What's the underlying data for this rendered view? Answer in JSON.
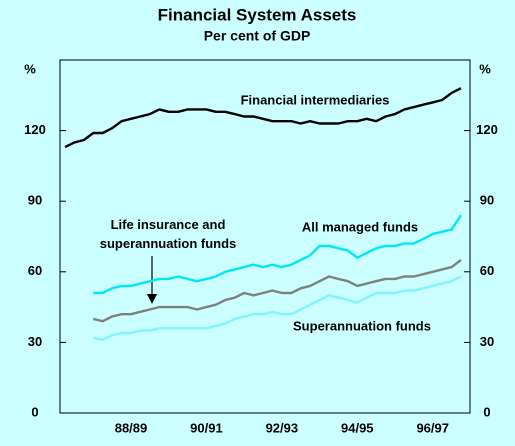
{
  "chart_data": {
    "type": "line",
    "title": "Financial System Assets",
    "subtitle": "Per cent of GDP",
    "ylabel": "%",
    "y2label": "%",
    "categories": [
      null,
      null,
      null,
      null,
      null,
      null,
      null,
      "88/89",
      null,
      null,
      null,
      null,
      null,
      null,
      null,
      "90/91",
      null,
      null,
      null,
      null,
      null,
      null,
      null,
      "92/93",
      null,
      null,
      null,
      null,
      null,
      null,
      null,
      "94/95",
      null,
      null,
      null,
      null,
      null,
      null,
      null,
      "96/97",
      null,
      null,
      null
    ],
    "ylim": [
      0,
      150
    ],
    "yticks": [
      0,
      30,
      60,
      90,
      120
    ],
    "y2lim": [
      0,
      150
    ],
    "y2ticks": [
      0,
      30,
      60,
      90,
      120
    ],
    "grid": false,
    "series": [
      {
        "name": "Financial intermediaries",
        "color": "#000000",
        "values": [
          113,
          115,
          116,
          119,
          119,
          121,
          124,
          125,
          126,
          127,
          129,
          128,
          128,
          129,
          129,
          129,
          128,
          128,
          127,
          126,
          126,
          125,
          124,
          124,
          124,
          123,
          124,
          123,
          123,
          123,
          124,
          124,
          125,
          124,
          126,
          127,
          129,
          130,
          131,
          132,
          133,
          136,
          138
        ]
      },
      {
        "name": "All managed funds",
        "color": "#00e8f8",
        "values": [
          null,
          null,
          null,
          51,
          51,
          53,
          54,
          54,
          55,
          56,
          57,
          57,
          58,
          57,
          56,
          57,
          58,
          60,
          61,
          62,
          63,
          62,
          63,
          62,
          63,
          65,
          67,
          71,
          71,
          70,
          69,
          66,
          68,
          70,
          71,
          71,
          72,
          72,
          74,
          76,
          77,
          78,
          84
        ]
      },
      {
        "name": "Life insurance and superannuation funds",
        "color": "#808080",
        "values": [
          null,
          null,
          null,
          40,
          39,
          41,
          42,
          42,
          43,
          44,
          45,
          45,
          45,
          45,
          44,
          45,
          46,
          48,
          49,
          51,
          50,
          51,
          52,
          51,
          51,
          53,
          54,
          56,
          58,
          57,
          56,
          54,
          55,
          56,
          57,
          57,
          58,
          58,
          59,
          60,
          61,
          62,
          65
        ]
      },
      {
        "name": "Superannuation funds",
        "color": "#80f4ff",
        "values": [
          null,
          null,
          null,
          32,
          31,
          33,
          34,
          34,
          35,
          35,
          36,
          36,
          36,
          36,
          36,
          36,
          37,
          38,
          40,
          41,
          42,
          42,
          43,
          42,
          42,
          44,
          46,
          48,
          50,
          49,
          48,
          47,
          49,
          51,
          51,
          51,
          52,
          52,
          53,
          54,
          55,
          56,
          58
        ]
      }
    ]
  }
}
